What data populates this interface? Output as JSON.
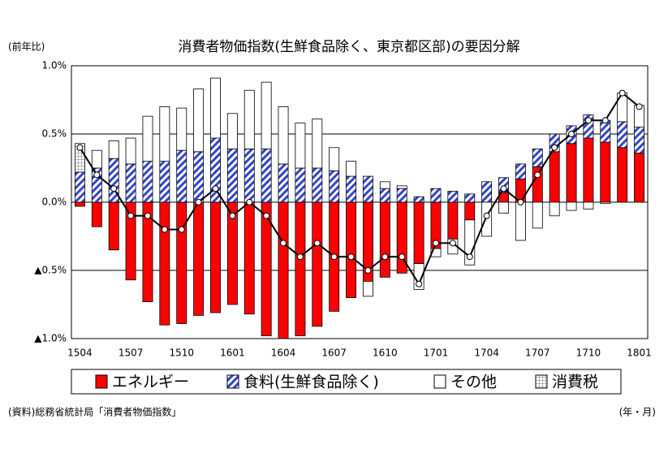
{
  "chart_data": {
    "type": "bar",
    "title": "消費者物価指数(生鮮食品除く、東京都区部)の要因分解",
    "y_label": "(前年比)",
    "source": "(資料)総務省統計局「消費者物価指数」",
    "x_label": "(年・月)",
    "stacked": true,
    "categories": [
      "1504",
      null,
      null,
      "1507",
      null,
      null,
      "1510",
      null,
      null,
      "1601",
      null,
      null,
      "1604",
      null,
      null,
      "1607",
      null,
      null,
      "1610",
      null,
      null,
      "1701",
      null,
      null,
      "1704",
      null,
      null,
      "1707",
      null,
      null,
      "1710",
      null,
      null,
      "1801"
    ],
    "series": [
      {
        "name": "エネルギー",
        "color": "#ff0000",
        "pattern": "solid",
        "values": [
          -0.03,
          -0.18,
          -0.35,
          -0.57,
          -0.73,
          -0.9,
          -0.89,
          -0.83,
          -0.81,
          -0.75,
          -0.82,
          -0.98,
          -1.0,
          -0.98,
          -0.91,
          -0.8,
          -0.7,
          -0.58,
          -0.55,
          -0.52,
          -0.45,
          -0.34,
          -0.27,
          -0.13,
          0.0,
          0.07,
          0.17,
          0.26,
          0.37,
          0.43,
          0.47,
          0.44,
          0.4,
          0.36
        ]
      },
      {
        "name": "食料(生鮮食品除く)",
        "color": "#3344cc",
        "pattern": "hatch",
        "values": [
          0.22,
          0.25,
          0.32,
          0.28,
          0.3,
          0.3,
          0.38,
          0.37,
          0.47,
          0.39,
          0.39,
          0.39,
          0.28,
          0.25,
          0.25,
          0.23,
          0.19,
          0.19,
          0.1,
          0.1,
          0.04,
          0.1,
          0.08,
          0.06,
          0.15,
          0.11,
          0.11,
          0.13,
          0.13,
          0.13,
          0.17,
          0.16,
          0.19,
          0.19
        ]
      },
      {
        "name": "その他",
        "color": "#ffffff",
        "pattern": "solid",
        "values": [
          0.0,
          0.13,
          0.13,
          0.19,
          0.33,
          0.4,
          0.31,
          0.46,
          0.44,
          0.26,
          0.43,
          0.49,
          0.42,
          0.33,
          0.36,
          0.17,
          0.11,
          -0.11,
          0.05,
          0.02,
          -0.19,
          -0.06,
          -0.11,
          -0.33,
          -0.25,
          -0.08,
          -0.28,
          -0.19,
          -0.1,
          -0.06,
          -0.05,
          -0.01,
          0.21,
          0.16
        ]
      },
      {
        "name": "消費税",
        "color": "#888888",
        "pattern": "grid",
        "values": [
          0.21,
          0,
          0,
          0,
          0,
          0,
          0,
          0,
          0,
          0,
          0,
          0,
          0,
          0,
          0,
          0,
          0,
          0,
          0,
          0,
          0,
          0,
          0,
          0,
          0,
          0,
          0,
          0,
          0,
          0,
          0,
          0,
          0,
          0
        ]
      }
    ],
    "line": {
      "color": "#000000",
      "values": [
        0.4,
        0.2,
        0.1,
        -0.1,
        -0.1,
        -0.2,
        -0.2,
        0.0,
        0.1,
        -0.1,
        0.0,
        -0.1,
        -0.3,
        -0.4,
        -0.3,
        -0.4,
        -0.4,
        -0.5,
        -0.4,
        -0.4,
        -0.6,
        -0.3,
        -0.3,
        -0.4,
        -0.1,
        0.1,
        0.0,
        0.2,
        0.4,
        0.5,
        0.6,
        0.6,
        0.8,
        0.7
      ]
    },
    "ylim": [
      -1.0,
      1.0
    ],
    "yticks": [
      {
        "value": -1.0,
        "label": "▲1.0%"
      },
      {
        "value": -0.5,
        "label": "▲0.5%"
      },
      {
        "value": 0.0,
        "label": "0.0%"
      },
      {
        "value": 0.5,
        "label": "0.5%"
      },
      {
        "value": 1.0,
        "label": "1.0%"
      }
    ],
    "grid": true
  }
}
